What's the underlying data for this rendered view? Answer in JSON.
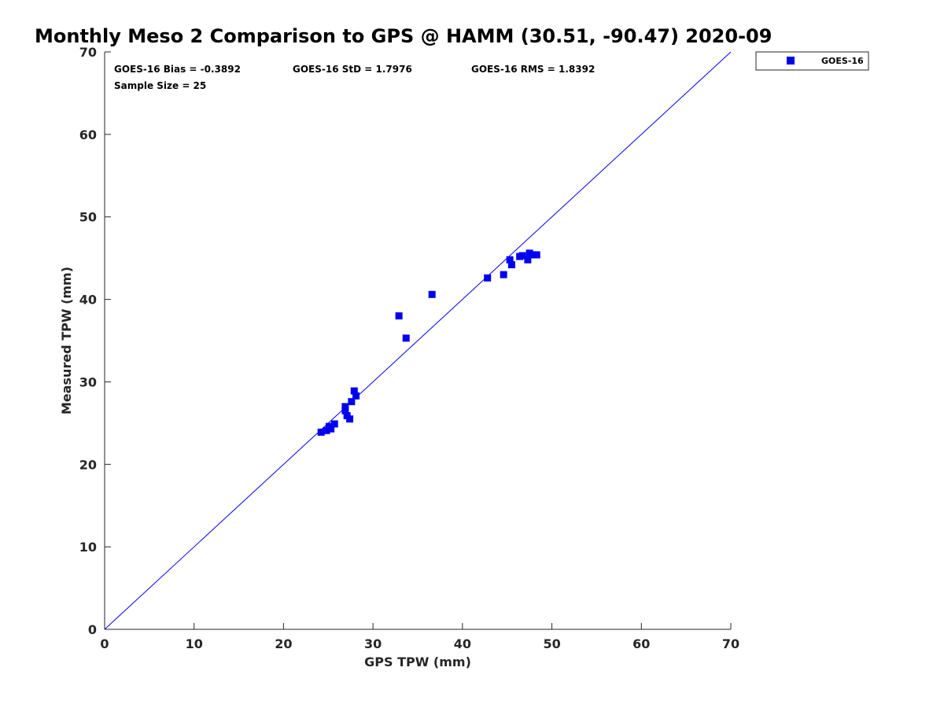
{
  "chart_data": {
    "type": "scatter",
    "title": "Monthly Meso 2 Comparison to GPS @ HAMM (30.51, -90.47) 2020-09",
    "xlabel": "GPS TPW (mm)",
    "ylabel": "Measured TPW (mm)",
    "xlim": [
      0,
      70
    ],
    "ylim": [
      0,
      70
    ],
    "xticks": [
      0,
      10,
      20,
      30,
      40,
      50,
      60,
      70
    ],
    "yticks": [
      0,
      10,
      20,
      30,
      40,
      50,
      60,
      70
    ],
    "grid": false,
    "legend_position": "top-right",
    "reference_line": "1:1",
    "stats": {
      "bias": "GOES-16 Bias = -0.3892",
      "std": "GOES-16 StD = 1.7976",
      "rms": "GOES-16 RMS = 1.8392",
      "sample": "Sample Size = 25"
    },
    "series": [
      {
        "name": "GOES-16",
        "color": "#0000ee",
        "marker": "square",
        "points": [
          [
            24.2,
            23.9
          ],
          [
            24.8,
            24.1
          ],
          [
            25.1,
            24.6
          ],
          [
            25.3,
            24.3
          ],
          [
            25.7,
            24.9
          ],
          [
            26.9,
            27.0
          ],
          [
            26.9,
            26.5
          ],
          [
            27.1,
            25.9
          ],
          [
            27.4,
            25.5
          ],
          [
            27.6,
            27.6
          ],
          [
            27.9,
            28.9
          ],
          [
            28.1,
            28.3
          ],
          [
            32.9,
            38.0
          ],
          [
            33.7,
            35.3
          ],
          [
            36.6,
            40.6
          ],
          [
            42.8,
            42.6
          ],
          [
            44.6,
            43.0
          ],
          [
            45.3,
            44.8
          ],
          [
            45.5,
            44.2
          ],
          [
            46.4,
            45.2
          ],
          [
            46.7,
            45.3
          ],
          [
            47.3,
            44.8
          ],
          [
            47.5,
            45.6
          ],
          [
            48.0,
            45.4
          ],
          [
            48.3,
            45.4
          ]
        ]
      }
    ]
  }
}
